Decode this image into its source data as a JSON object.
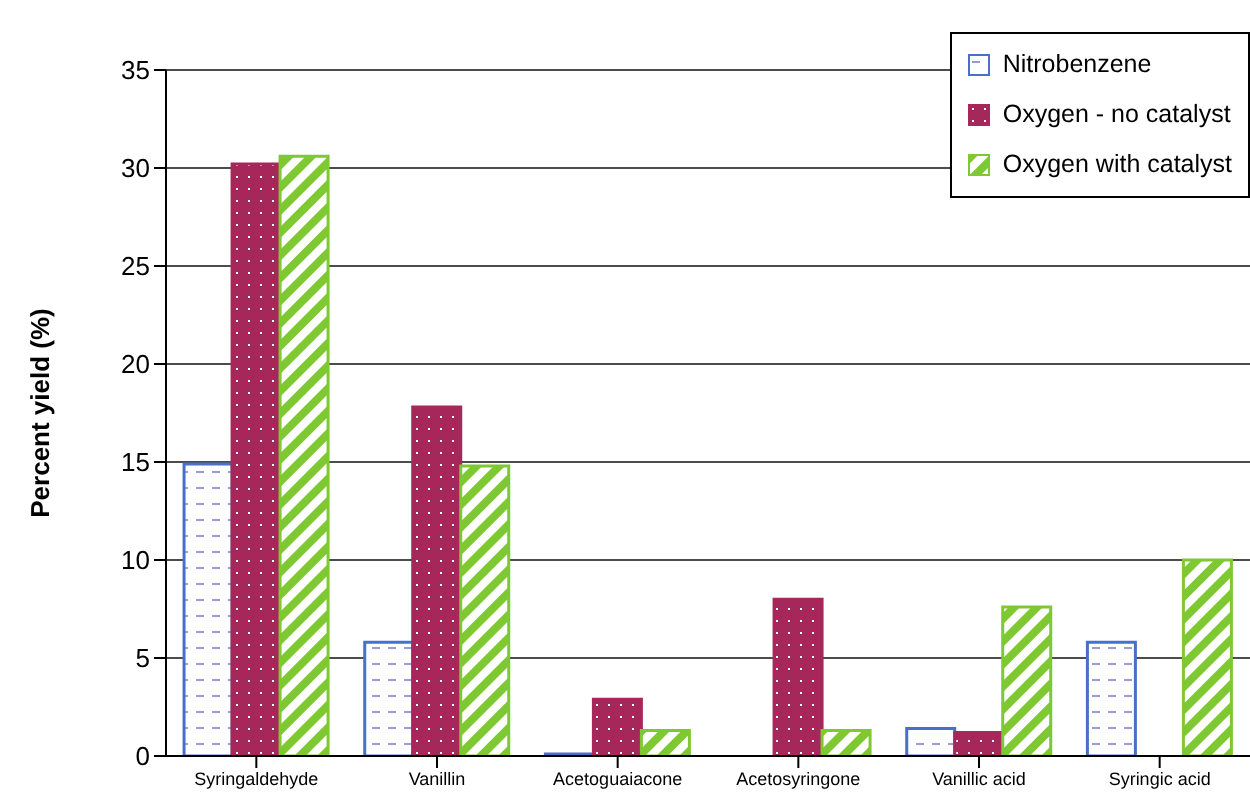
{
  "chart_data": {
    "type": "bar",
    "ylabel": "Percent yield (%)",
    "categories": [
      "Syringaldehyde",
      "Vanillin",
      "Acetoguaiacone",
      "Acetosyringone",
      "Vanillic acid",
      "Syringic acid"
    ],
    "series": [
      {
        "name": "Nitrobenzene",
        "color": "#4a6fc8",
        "values": [
          14.9,
          5.8,
          0.1,
          null,
          1.4,
          5.8
        ]
      },
      {
        "name": "Oxygen -  no catalyst",
        "color": "#a6285a",
        "values": [
          30.2,
          17.8,
          2.9,
          8.0,
          1.2,
          null
        ]
      },
      {
        "name": "Oxygen with catalyst",
        "color": "#7ec832",
        "values": [
          30.6,
          14.8,
          1.3,
          1.3,
          7.6,
          10.0
        ]
      }
    ],
    "ylim": [
      0,
      35
    ],
    "yticks": [
      0,
      5,
      10,
      15,
      20,
      25,
      30,
      35
    ],
    "grid": "y",
    "legend": "top right"
  }
}
